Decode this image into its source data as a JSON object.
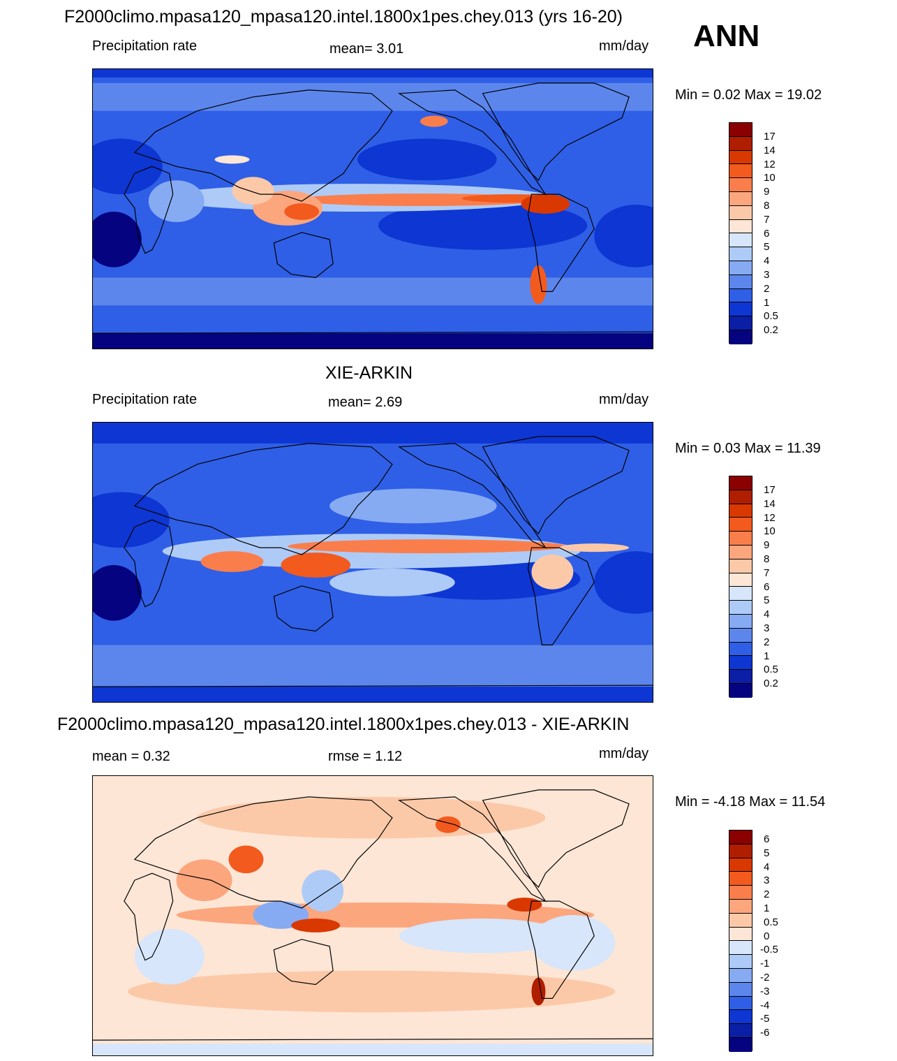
{
  "header": {
    "title": "F2000climo.mpasa120_mpasa120.intel.1800x1pes.chey.013 (yrs 16-20)",
    "season": "ANN"
  },
  "panels": [
    {
      "id": "test",
      "title": "",
      "left_label": "Precipitation rate",
      "center_label": "mean=   3.01",
      "right_label": "mm/day",
      "minmax": "Min =    0.02 Max =  19.02",
      "colorbar": {
        "labels": [
          "17",
          "14",
          "12",
          "10",
          "9",
          "8",
          "7",
          "6",
          "5",
          "4",
          "3",
          "2",
          "1",
          "0.5",
          "0.2"
        ],
        "colors": [
          "#8b0000",
          "#b01e00",
          "#d93800",
          "#f25a1e",
          "#fa7e4c",
          "#fca67e",
          "#fcc9a8",
          "#fde6d6",
          "#d7e6fa",
          "#aecbf7",
          "#87abf2",
          "#5c86ec",
          "#2f5fe6",
          "#0d36d2",
          "#0a1fa6",
          "#05037f"
        ]
      }
    },
    {
      "id": "reference",
      "title": "XIE-ARKIN",
      "left_label": "Precipitation rate",
      "center_label": "mean=   2.69",
      "right_label": "mm/day",
      "minmax": "Min =    0.03 Max =  11.39",
      "colorbar": {
        "labels": [
          "17",
          "14",
          "12",
          "10",
          "9",
          "8",
          "7",
          "6",
          "5",
          "4",
          "3",
          "2",
          "1",
          "0.5",
          "0.2"
        ],
        "colors": [
          "#8b0000",
          "#b01e00",
          "#d93800",
          "#f25a1e",
          "#fa7e4c",
          "#fca67e",
          "#fcc9a8",
          "#fde6d6",
          "#d7e6fa",
          "#aecbf7",
          "#87abf2",
          "#5c86ec",
          "#2f5fe6",
          "#0d36d2",
          "#0a1fa6",
          "#05037f"
        ]
      }
    },
    {
      "id": "difference",
      "title": "F2000climo.mpasa120_mpasa120.intel.1800x1pes.chey.013 - XIE-ARKIN",
      "left_label": "mean =    0.32",
      "center_label": "rmse =    1.12",
      "right_label": "mm/day",
      "minmax": "Min =  -4.18 Max =  11.54",
      "colorbar": {
        "labels": [
          "6",
          "5",
          "4",
          "3",
          "2",
          "1",
          "0.5",
          "0",
          "-0.5",
          "-1",
          "-2",
          "-3",
          "-4",
          "-5",
          "-6"
        ],
        "colors": [
          "#8b0000",
          "#b01e00",
          "#d93800",
          "#f25a1e",
          "#fa7e4c",
          "#fca67e",
          "#fcc9a8",
          "#fde6d6",
          "#d7e6fa",
          "#aecbf7",
          "#87abf2",
          "#5c86ec",
          "#2f5fe6",
          "#0d36d2",
          "#0a1fa6",
          "#05037f"
        ]
      }
    }
  ]
}
